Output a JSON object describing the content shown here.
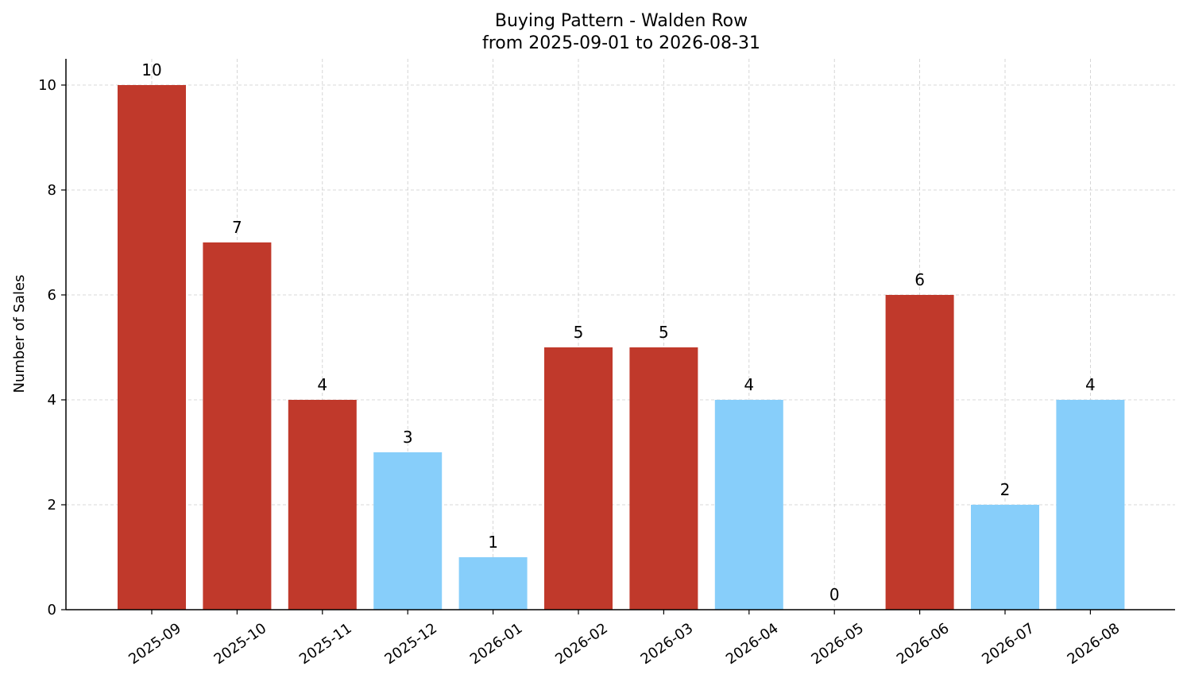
{
  "chart_data": {
    "type": "bar",
    "title": "Buying Pattern - Walden Row",
    "subtitle": "from 2025-09-01 to 2026-08-31",
    "xlabel": "",
    "ylabel": "Number of Sales",
    "ylim": [
      0,
      10.5
    ],
    "yticks": [
      0,
      2,
      4,
      6,
      8,
      10
    ],
    "grid": true,
    "categories": [
      "2025-09",
      "2025-10",
      "2025-11",
      "2025-12",
      "2026-01",
      "2026-02",
      "2026-03",
      "2026-04",
      "2026-05",
      "2026-06",
      "2026-07",
      "2026-08"
    ],
    "values": [
      10,
      7,
      4,
      3,
      1,
      5,
      5,
      4,
      0,
      6,
      2,
      4
    ],
    "bar_colors": [
      "#c0392b",
      "#c0392b",
      "#c0392b",
      "#87cefa",
      "#87cefa",
      "#c0392b",
      "#c0392b",
      "#87cefa",
      "#87cefa",
      "#c0392b",
      "#87cefa",
      "#87cefa"
    ]
  }
}
